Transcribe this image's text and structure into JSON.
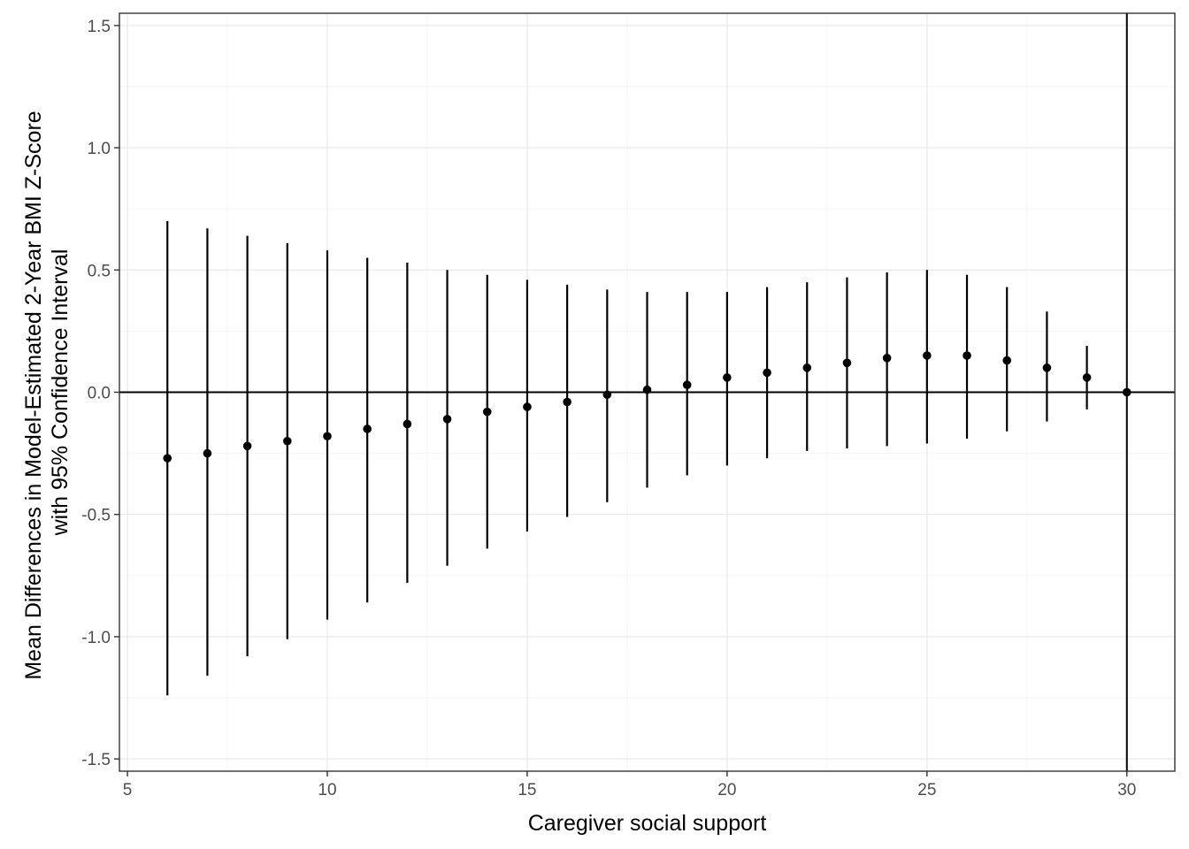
{
  "chart_data": {
    "type": "scatter",
    "title": "",
    "xlabel": "Caregiver social support",
    "ylabel_line1": "Mean Differences in Model-Estimated 2-Year BMI Z-Score",
    "ylabel_line2": "with 95% Confidence Interval",
    "xlim": [
      4.8,
      31.2
    ],
    "ylim": [
      -1.55,
      1.55
    ],
    "x_ticks": [
      5,
      10,
      15,
      20,
      25,
      30
    ],
    "x_tick_labels": [
      "5",
      "10",
      "15",
      "20",
      "25",
      "30"
    ],
    "y_ticks": [
      -1.5,
      -1.0,
      -0.5,
      0.0,
      0.5,
      1.0,
      1.5
    ],
    "y_tick_labels": [
      "-1.5",
      "-1.0",
      "-0.5",
      "0.0",
      "0.5",
      "1.0",
      "1.5"
    ],
    "grid": true,
    "reference_lines": {
      "horizontal_y": 0,
      "vertical_x": 30
    },
    "points": [
      {
        "x": 6,
        "y": -0.27,
        "lower": -1.24,
        "upper": 0.7
      },
      {
        "x": 7,
        "y": -0.25,
        "lower": -1.16,
        "upper": 0.67
      },
      {
        "x": 8,
        "y": -0.22,
        "lower": -1.08,
        "upper": 0.64
      },
      {
        "x": 9,
        "y": -0.2,
        "lower": -1.01,
        "upper": 0.61
      },
      {
        "x": 10,
        "y": -0.18,
        "lower": -0.93,
        "upper": 0.58
      },
      {
        "x": 11,
        "y": -0.15,
        "lower": -0.86,
        "upper": 0.55
      },
      {
        "x": 12,
        "y": -0.13,
        "lower": -0.78,
        "upper": 0.53
      },
      {
        "x": 13,
        "y": -0.11,
        "lower": -0.71,
        "upper": 0.5
      },
      {
        "x": 14,
        "y": -0.08,
        "lower": -0.64,
        "upper": 0.48
      },
      {
        "x": 15,
        "y": -0.06,
        "lower": -0.57,
        "upper": 0.46
      },
      {
        "x": 16,
        "y": -0.04,
        "lower": -0.51,
        "upper": 0.44
      },
      {
        "x": 17,
        "y": -0.01,
        "lower": -0.45,
        "upper": 0.42
      },
      {
        "x": 18,
        "y": 0.01,
        "lower": -0.39,
        "upper": 0.41
      },
      {
        "x": 19,
        "y": 0.03,
        "lower": -0.34,
        "upper": 0.41
      },
      {
        "x": 20,
        "y": 0.06,
        "lower": -0.3,
        "upper": 0.41
      },
      {
        "x": 21,
        "y": 0.08,
        "lower": -0.27,
        "upper": 0.43
      },
      {
        "x": 22,
        "y": 0.1,
        "lower": -0.24,
        "upper": 0.45
      },
      {
        "x": 23,
        "y": 0.12,
        "lower": -0.23,
        "upper": 0.47
      },
      {
        "x": 24,
        "y": 0.14,
        "lower": -0.22,
        "upper": 0.49
      },
      {
        "x": 25,
        "y": 0.15,
        "lower": -0.21,
        "upper": 0.5
      },
      {
        "x": 26,
        "y": 0.15,
        "lower": -0.19,
        "upper": 0.48
      },
      {
        "x": 27,
        "y": 0.13,
        "lower": -0.16,
        "upper": 0.43
      },
      {
        "x": 28,
        "y": 0.1,
        "lower": -0.12,
        "upper": 0.33
      },
      {
        "x": 29,
        "y": 0.06,
        "lower": -0.07,
        "upper": 0.19
      },
      {
        "x": 30,
        "y": 0.0,
        "lower": 0.0,
        "upper": 0.0
      }
    ]
  }
}
